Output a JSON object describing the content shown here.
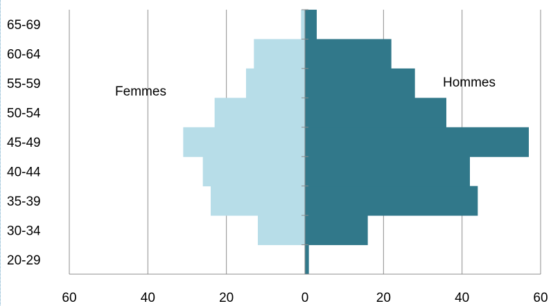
{
  "chart_data": {
    "type": "bar",
    "orientation": "horizontal",
    "style": "population-pyramid",
    "categories": [
      "20-29",
      "30-34",
      "35-39",
      "40-44",
      "45-49",
      "50-54",
      "55-59",
      "60-64",
      "65-69"
    ],
    "series": [
      {
        "name": "Femmes",
        "side": "left",
        "color": "#b7dde8",
        "values": [
          0,
          12,
          24,
          26,
          31,
          23,
          15,
          13,
          1
        ]
      },
      {
        "name": "Hommes",
        "side": "right",
        "color": "#31788a",
        "values": [
          1,
          16,
          44,
          42,
          57,
          36,
          28,
          22,
          3
        ]
      }
    ],
    "x_ticks": [
      "60",
      "40",
      "20",
      "0",
      "20",
      "40",
      "60"
    ],
    "xlim": [
      -60,
      60
    ],
    "grid": "vertical",
    "title": "",
    "xlabel": "",
    "ylabel": ""
  }
}
